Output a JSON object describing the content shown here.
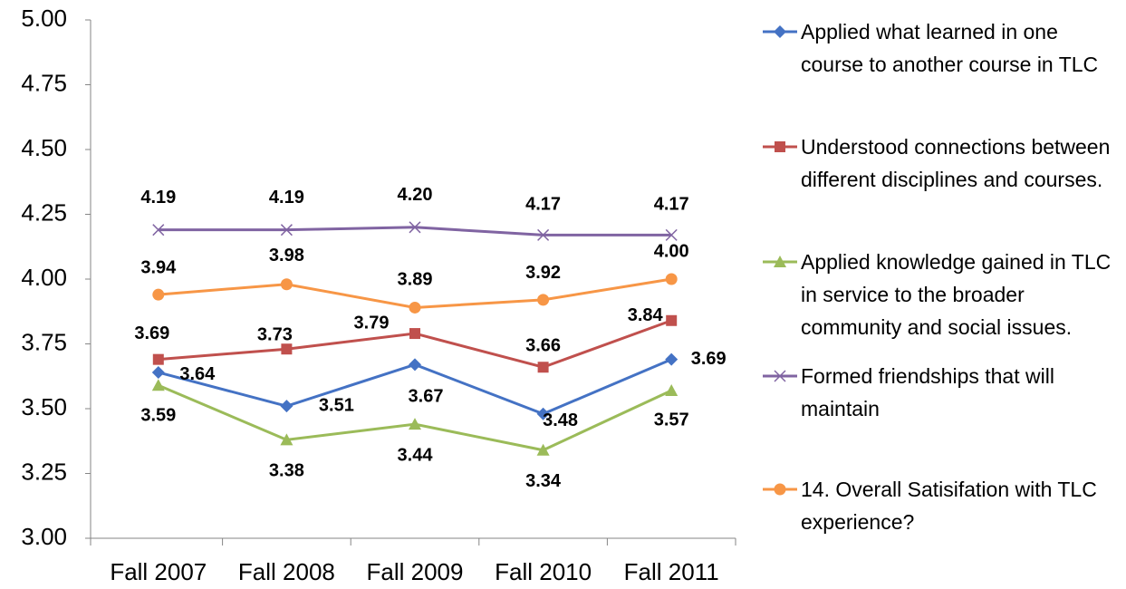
{
  "chart_data": {
    "type": "line",
    "categories": [
      "Fall 2007",
      "Fall 2008",
      "Fall 2009",
      "Fall 2010",
      "Fall 2011"
    ],
    "ylim": [
      3,
      5
    ],
    "yticks": [
      {
        "value": 3,
        "label": "3.00"
      },
      {
        "value": 3.25,
        "label": "3.25"
      },
      {
        "value": 3.5,
        "label": "3.50"
      },
      {
        "value": 3.75,
        "label": "3.75"
      },
      {
        "value": 4,
        "label": "4.00"
      },
      {
        "value": 4.25,
        "label": "4.25"
      },
      {
        "value": 4.5,
        "label": "4.50"
      },
      {
        "value": 4.75,
        "label": "4.75"
      },
      {
        "value": 5,
        "label": "5.00"
      }
    ],
    "grid": false,
    "legend": "right",
    "series": [
      {
        "name": "Applied what learned in one course to another course in TLC",
        "color": "#4472c4",
        "marker": "diamond",
        "values": [
          3.64,
          3.51,
          3.67,
          3.48,
          3.69
        ]
      },
      {
        "name": "Understood connections between different disciplines and courses.",
        "color": "#c0504d",
        "marker": "square",
        "values": [
          3.69,
          3.73,
          3.79,
          3.66,
          3.84
        ]
      },
      {
        "name": "Applied knowledge gained in TLC in service to the broader community and social issues.",
        "color": "#9bbb59",
        "marker": "triangle",
        "values": [
          3.59,
          3.38,
          3.44,
          3.34,
          3.57
        ]
      },
      {
        "name": "Formed friendships that will maintain",
        "color": "#8064a2",
        "marker": "x",
        "values": [
          4.19,
          4.19,
          4.2,
          4.17,
          4.17
        ],
        "value_labels": [
          "4.19",
          "4.19",
          "4.20",
          "4.17",
          "4.17"
        ]
      },
      {
        "name": "14.  Overall Satisifation with TLC experience?",
        "color": "#f79646",
        "marker": "circle",
        "values": [
          3.94,
          3.98,
          3.89,
          3.92,
          4.0
        ],
        "value_labels": [
          "3.94",
          "3.98",
          "3.89",
          "3.92",
          "4.00"
        ]
      }
    ]
  }
}
